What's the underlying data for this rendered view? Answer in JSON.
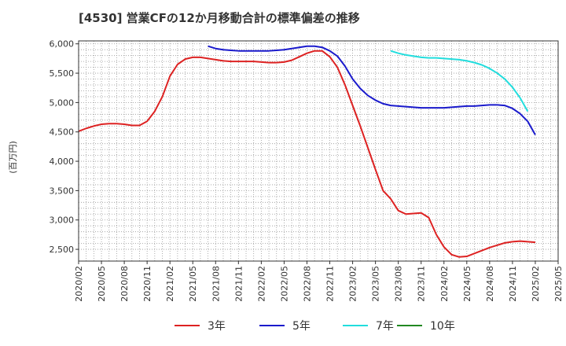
{
  "chart_data": {
    "type": "line",
    "title": "[4530]  営業CFの12か月移動合計の標準偏差の推移",
    "ylabel": "(百万円)",
    "xlabel": "",
    "ylim": [
      2300,
      6050
    ],
    "xlim": [
      "2020/02",
      "2025/05"
    ],
    "grid": true,
    "legend_position": "bottom",
    "yticks": [
      2500,
      3000,
      3500,
      4000,
      4500,
      5000,
      5500,
      6000
    ],
    "ytick_labels": [
      "2,500",
      "3,000",
      "3,500",
      "4,000",
      "4,500",
      "5,000",
      "5,500",
      "6,000"
    ],
    "xtick_labels": [
      "2020/02",
      "2020/05",
      "2020/08",
      "2020/11",
      "2021/02",
      "2021/05",
      "2021/08",
      "2021/11",
      "2022/02",
      "2022/05",
      "2022/08",
      "2022/11",
      "2023/02",
      "2023/05",
      "2023/08",
      "2023/11",
      "2024/02",
      "2024/05",
      "2024/08",
      "2024/11",
      "2025/02",
      "2025/05"
    ],
    "series": [
      {
        "name": "3年",
        "color": "#dd2222",
        "start": "2020/02",
        "values": [
          4510,
          4560,
          4600,
          4630,
          4640,
          4640,
          4630,
          4610,
          4610,
          4680,
          4850,
          5100,
          5450,
          5650,
          5740,
          5770,
          5770,
          5750,
          5730,
          5710,
          5700,
          5700,
          5700,
          5700,
          5690,
          5680,
          5680,
          5690,
          5720,
          5780,
          5840,
          5880,
          5880,
          5780,
          5600,
          5300,
          4950,
          4600,
          4230,
          3860,
          3500,
          3360,
          3160,
          3100,
          3110,
          3120,
          3040,
          2750,
          2540,
          2410,
          2370,
          2380,
          2430,
          2480,
          2530,
          2570,
          2610,
          2630,
          2640,
          2630,
          2620
        ]
      },
      {
        "name": "5年",
        "color": "#1a1acc",
        "start": "2021/07",
        "values": [
          5960,
          5920,
          5900,
          5890,
          5880,
          5880,
          5880,
          5880,
          5880,
          5890,
          5900,
          5920,
          5940,
          5960,
          5960,
          5940,
          5880,
          5790,
          5620,
          5400,
          5240,
          5120,
          5040,
          4980,
          4950,
          4940,
          4930,
          4920,
          4910,
          4910,
          4910,
          4910,
          4920,
          4930,
          4940,
          4940,
          4950,
          4960,
          4960,
          4950,
          4900,
          4810,
          4680,
          4450
        ]
      },
      {
        "name": "7年",
        "color": "#22dddd",
        "start": "2023/07",
        "values": [
          5880,
          5840,
          5810,
          5790,
          5770,
          5760,
          5760,
          5750,
          5740,
          5730,
          5710,
          5680,
          5640,
          5580,
          5500,
          5400,
          5260,
          5080,
          4850
        ]
      },
      {
        "name": "10年",
        "color": "#228822",
        "start": "2025/02",
        "values": []
      }
    ]
  }
}
